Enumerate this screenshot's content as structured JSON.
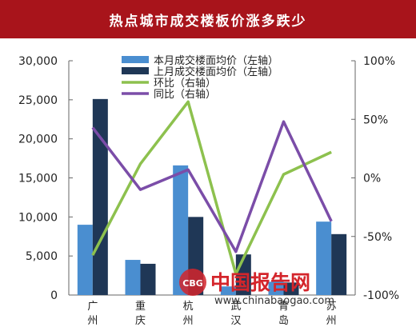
{
  "title": "热点城市成交楼板价涨多跌少",
  "watermark": {
    "cn": "中国报告网",
    "url": "www.chinabaogao.com",
    "logo": "CBG"
  },
  "colors": {
    "bar_current": "#4a8ed0",
    "bar_previous": "#1f3756",
    "line_mom": "#8dc14e",
    "line_yoy": "#7b4da8",
    "title_bg": "#a8141b"
  },
  "chart_data": {
    "type": "bar",
    "title": "热点城市成交楼板价涨多跌少",
    "categories": [
      "广州",
      "重庆",
      "杭州",
      "武汉",
      "青岛",
      "苏州"
    ],
    "left_axis": {
      "min": 0,
      "max": 30000,
      "ticks": [
        "0",
        "5,000",
        "10,000",
        "15,000",
        "20,000",
        "25,000",
        "30,000"
      ]
    },
    "right_axis": {
      "min": -100,
      "max": 100,
      "ticks": [
        "-100%",
        "-50%",
        "0%",
        "50%",
        "100%"
      ]
    },
    "series": [
      {
        "name": "本月成交楼面均价（左轴）",
        "type": "bar",
        "axis": "left",
        "values": [
          9000,
          4500,
          16600,
          1100,
          1700,
          9400
        ]
      },
      {
        "name": "上月成交楼面均价（左轴）",
        "type": "bar",
        "axis": "left",
        "values": [
          25100,
          4000,
          10000,
          5200,
          1600,
          7800
        ]
      },
      {
        "name": "环比（右轴）",
        "type": "line",
        "axis": "right",
        "values": [
          -66,
          12,
          65,
          -82,
          3,
          22
        ]
      },
      {
        "name": "同比（右轴）",
        "type": "line",
        "axis": "right",
        "values": [
          43,
          -10,
          7,
          -63,
          48,
          -37
        ]
      }
    ],
    "legend_position": "top-center",
    "grid": false
  }
}
